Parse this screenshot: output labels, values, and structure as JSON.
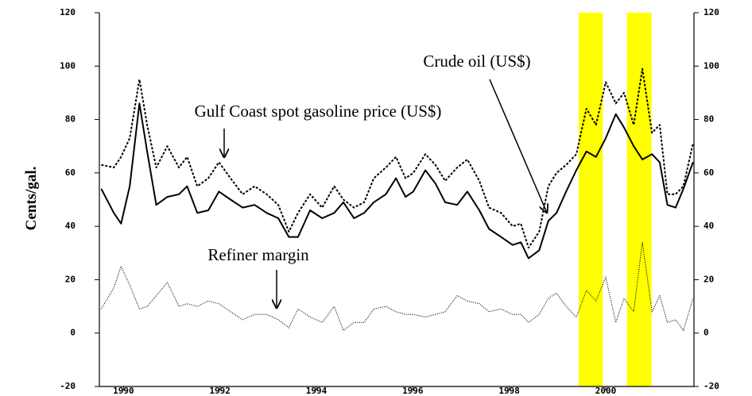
{
  "chart_data": {
    "type": "line",
    "ylabel": "Cents/gal.",
    "xlim": [
      1989.5,
      2001.83
    ],
    "xticks": [
      1990,
      1992,
      1994,
      1996,
      1998,
      2000
    ],
    "ylim": [
      -20,
      120
    ],
    "yticks": [
      -20,
      0,
      20,
      40,
      60,
      80,
      100,
      120
    ],
    "y2lim": [
      -20,
      120
    ],
    "y2ticks": [
      -20,
      0,
      20,
      40,
      60,
      80,
      100,
      120
    ],
    "highlights": [
      [
        1999.44,
        1999.94
      ],
      [
        2000.44,
        2000.95
      ]
    ],
    "highlight_color": "#ffff00",
    "x": [
      1989.54,
      1989.8,
      1989.95,
      1990.13,
      1990.33,
      1990.49,
      1990.68,
      1990.91,
      1991.15,
      1991.32,
      1991.53,
      1991.76,
      1991.98,
      1992.22,
      1992.47,
      1992.72,
      1992.97,
      1993.21,
      1993.43,
      1993.62,
      1993.87,
      1994.12,
      1994.37,
      1994.56,
      1994.78,
      1994.99,
      1995.19,
      1995.44,
      1995.65,
      1995.85,
      1996.01,
      1996.26,
      1996.47,
      1996.67,
      1996.92,
      1997.13,
      1997.38,
      1997.58,
      1997.83,
      1998.07,
      1998.24,
      1998.4,
      1998.62,
      1998.81,
      1998.98,
      1999.18,
      1999.39,
      1999.6,
      1999.8,
      2000.0,
      2000.21,
      2000.38,
      2000.58,
      2000.76,
      2000.96,
      2001.12,
      2001.28,
      2001.45,
      2001.61,
      2001.81
    ],
    "series": [
      {
        "name": "Crude oil (US$)",
        "color": "#000000",
        "style": "solid",
        "values": [
          54,
          45,
          41,
          55,
          86,
          68,
          48,
          51,
          52,
          55,
          45,
          46,
          53,
          50,
          47,
          48,
          45,
          43,
          36,
          36,
          46,
          43,
          45,
          49,
          43,
          45,
          49,
          52,
          58,
          51,
          53,
          61,
          56,
          49,
          48,
          53,
          46,
          39,
          36,
          33,
          34,
          28,
          31,
          42,
          45,
          53,
          61,
          68,
          66,
          73,
          82,
          77,
          70,
          65,
          67,
          64,
          48,
          47,
          54,
          64
        ]
      },
      {
        "name": "Gulf Coast spot gasoline price (US$)",
        "color": "#000000",
        "style": "dashed",
        "values": [
          63,
          62,
          66,
          73,
          95,
          78,
          62,
          70,
          62,
          66,
          55,
          58,
          64,
          58,
          52,
          55,
          52,
          48,
          38,
          45,
          52,
          47,
          55,
          50,
          47,
          49,
          58,
          62,
          66,
          58,
          60,
          67,
          63,
          57,
          62,
          65,
          57,
          47,
          45,
          40,
          41,
          32,
          38,
          55,
          60,
          63,
          67,
          84,
          78,
          94,
          86,
          90,
          78,
          99,
          75,
          78,
          52,
          52,
          55,
          71
        ]
      },
      {
        "name": "Refiner margin",
        "color": "#000000",
        "style": "dotted",
        "values": [
          9,
          17,
          25,
          18,
          9,
          10,
          14,
          19,
          10,
          11,
          10,
          12,
          11,
          8,
          5,
          7,
          7,
          5,
          2,
          9,
          6,
          4,
          10,
          1,
          4,
          4,
          9,
          10,
          8,
          7,
          7,
          6,
          7,
          8,
          14,
          12,
          11,
          8,
          9,
          7,
          7,
          4,
          7,
          13,
          15,
          10,
          6,
          16,
          12,
          21,
          4,
          13,
          8,
          34,
          8,
          14,
          4,
          5,
          1,
          13
        ]
      }
    ]
  }
}
